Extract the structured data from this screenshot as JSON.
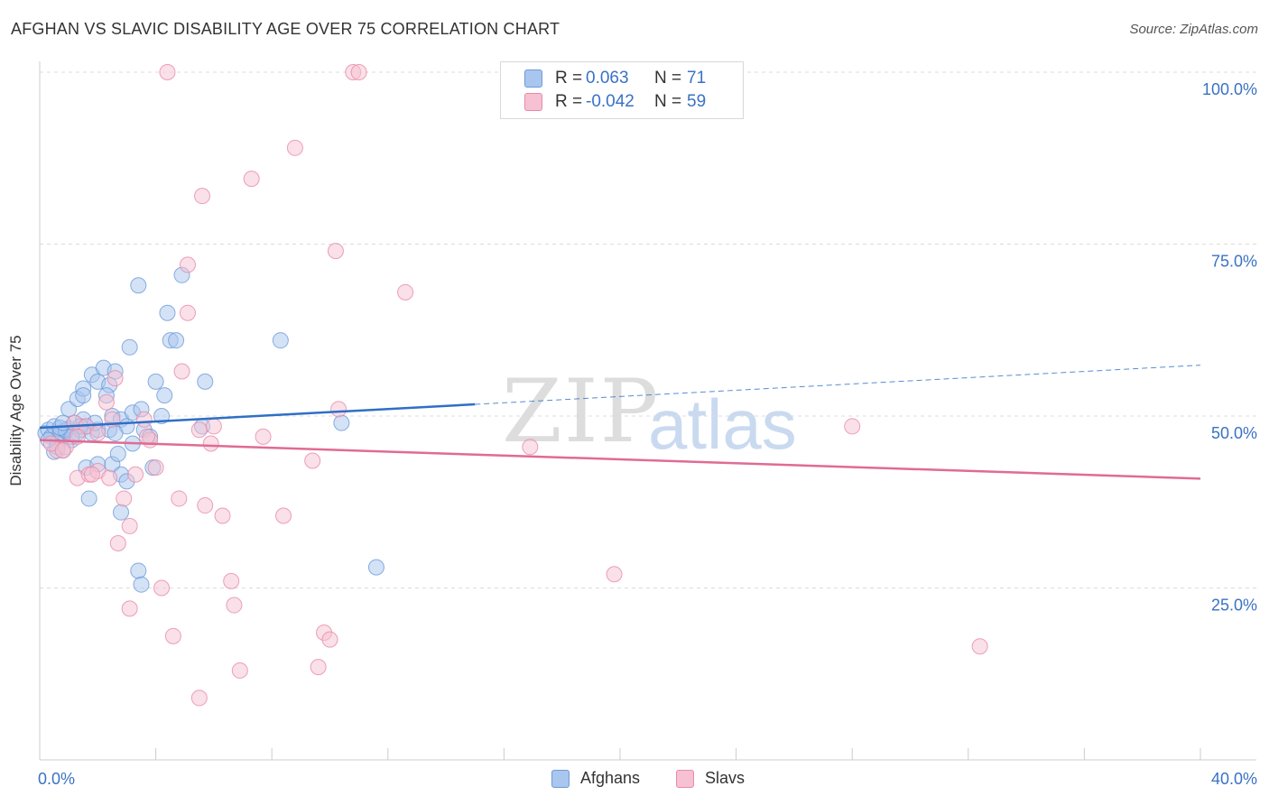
{
  "title": "AFGHAN VS SLAVIC DISABILITY AGE OVER 75 CORRELATION CHART",
  "source": "Source: ZipAtlas.com",
  "watermark": {
    "zip": "ZIP",
    "atlas": "atlas"
  },
  "colors": {
    "afghans_fill": "#a9c6ee",
    "afghans_stroke": "#6c9ad9",
    "afghans_line": "#2f6fc6",
    "slavs_fill": "#f6c1d2",
    "slavs_stroke": "#e98aa8",
    "slavs_line": "#e06b93",
    "tick_text": "#3a72c4",
    "grid": "#dcdcdc"
  },
  "legend": {
    "rows": [
      {
        "label": "R =",
        "r": "0.063",
        "nlabel": "N =",
        "n": "71",
        "series": "afghans"
      },
      {
        "label": "R =",
        "r": "-0.042",
        "nlabel": "N =",
        "n": "59",
        "series": "slavs"
      }
    ]
  },
  "bottom_legend": {
    "afghans": "Afghans",
    "slavs": "Slavs"
  },
  "chart_data": {
    "type": "scatter",
    "title": "AFGHAN VS SLAVIC DISABILITY AGE OVER 75 CORRELATION CHART",
    "xlabel": "",
    "ylabel": "Disability Age Over 75",
    "xlim": [
      0,
      40
    ],
    "ylim": [
      0,
      102
    ],
    "x_tick_labels": [
      "0.0%",
      "40.0%"
    ],
    "y_ticks": [
      25,
      50,
      75,
      100
    ],
    "y_tick_labels": [
      "25.0%",
      "50.0%",
      "75.0%",
      "100.0%"
    ],
    "legend_position": "top-center",
    "series": [
      {
        "name": "Afghans",
        "r": 0.063,
        "n": 71,
        "trend": {
          "x0": 0,
          "y0": 48.3,
          "x1": 15,
          "y1": 51.7,
          "dashed_to_x": 40,
          "dashed_to_y": 57.4
        },
        "points": [
          [
            0.2,
            47.5
          ],
          [
            0.3,
            48.0
          ],
          [
            0.4,
            47.0
          ],
          [
            0.5,
            48.5
          ],
          [
            0.6,
            46.0
          ],
          [
            0.7,
            47.5
          ],
          [
            0.8,
            45.0
          ],
          [
            0.9,
            47.8
          ],
          [
            1.0,
            48.2
          ],
          [
            1.1,
            46.5
          ],
          [
            0.5,
            44.8
          ],
          [
            0.6,
            45.5
          ],
          [
            0.3,
            46.5
          ],
          [
            1.2,
            49.0
          ],
          [
            1.3,
            47.5
          ],
          [
            1.4,
            48.0
          ],
          [
            1.5,
            49.5
          ],
          [
            1.6,
            48.5
          ],
          [
            1.8,
            47.5
          ],
          [
            2.0,
            48.0
          ],
          [
            1.0,
            51.0
          ],
          [
            1.3,
            52.5
          ],
          [
            1.5,
            54.0
          ],
          [
            1.8,
            56.0
          ],
          [
            2.0,
            55.0
          ],
          [
            2.2,
            57.0
          ],
          [
            2.4,
            54.5
          ],
          [
            2.6,
            56.5
          ],
          [
            3.1,
            60.0
          ],
          [
            2.3,
            53.0
          ],
          [
            2.5,
            50.0
          ],
          [
            2.8,
            49.5
          ],
          [
            3.0,
            48.5
          ],
          [
            3.2,
            50.5
          ],
          [
            3.5,
            51.0
          ],
          [
            4.0,
            55.0
          ],
          [
            4.3,
            53.0
          ],
          [
            4.5,
            61.0
          ],
          [
            4.7,
            61.0
          ],
          [
            4.4,
            65.0
          ],
          [
            3.4,
            69.0
          ],
          [
            4.9,
            70.5
          ],
          [
            5.7,
            55.0
          ],
          [
            8.3,
            61.0
          ],
          [
            10.4,
            49.0
          ],
          [
            1.6,
            42.5
          ],
          [
            1.7,
            38.0
          ],
          [
            2.0,
            43.0
          ],
          [
            2.5,
            43.0
          ],
          [
            2.7,
            44.5
          ],
          [
            2.8,
            41.5
          ],
          [
            3.0,
            40.5
          ],
          [
            3.2,
            46.0
          ],
          [
            3.6,
            48.0
          ],
          [
            3.9,
            42.5
          ],
          [
            2.8,
            36.0
          ],
          [
            3.4,
            27.5
          ],
          [
            3.5,
            25.5
          ],
          [
            11.6,
            28.0
          ],
          [
            5.6,
            48.5
          ],
          [
            1.4,
            48.5
          ],
          [
            1.9,
            49.0
          ],
          [
            0.9,
            48.0
          ],
          [
            1.1,
            47.0
          ],
          [
            0.7,
            48.3
          ],
          [
            2.4,
            48.0
          ],
          [
            2.6,
            47.5
          ],
          [
            3.8,
            47.0
          ],
          [
            4.2,
            50.0
          ],
          [
            1.5,
            53.0
          ],
          [
            0.8,
            49.0
          ]
        ]
      },
      {
        "name": "Slavs",
        "r": -0.042,
        "n": 59,
        "trend": {
          "x0": 0,
          "y0": 46.5,
          "x1": 40,
          "y1": 40.9
        },
        "points": [
          [
            4.4,
            100.0
          ],
          [
            10.8,
            100.0
          ],
          [
            11.0,
            100.0
          ],
          [
            8.8,
            89.0
          ],
          [
            7.3,
            84.5
          ],
          [
            5.6,
            82.0
          ],
          [
            10.2,
            74.0
          ],
          [
            5.1,
            72.0
          ],
          [
            12.6,
            68.0
          ],
          [
            5.1,
            65.0
          ],
          [
            4.9,
            56.5
          ],
          [
            2.6,
            55.5
          ],
          [
            2.3,
            52.0
          ],
          [
            10.3,
            51.0
          ],
          [
            3.6,
            49.5
          ],
          [
            1.2,
            49.0
          ],
          [
            5.5,
            48.0
          ],
          [
            6.0,
            48.5
          ],
          [
            7.7,
            47.0
          ],
          [
            3.8,
            46.5
          ],
          [
            1.6,
            48.5
          ],
          [
            2.0,
            47.5
          ],
          [
            0.6,
            45.0
          ],
          [
            0.9,
            45.5
          ],
          [
            0.4,
            46.0
          ],
          [
            1.3,
            47.0
          ],
          [
            5.9,
            46.0
          ],
          [
            16.9,
            45.5
          ],
          [
            28.0,
            48.5
          ],
          [
            9.4,
            43.5
          ],
          [
            1.3,
            41.0
          ],
          [
            1.7,
            41.5
          ],
          [
            2.0,
            42.0
          ],
          [
            2.4,
            41.0
          ],
          [
            3.3,
            41.5
          ],
          [
            4.0,
            42.5
          ],
          [
            2.9,
            38.0
          ],
          [
            4.8,
            38.0
          ],
          [
            5.7,
            37.0
          ],
          [
            6.3,
            35.5
          ],
          [
            8.4,
            35.5
          ],
          [
            3.1,
            34.0
          ],
          [
            2.7,
            31.5
          ],
          [
            6.6,
            26.0
          ],
          [
            19.8,
            27.0
          ],
          [
            4.2,
            25.0
          ],
          [
            3.1,
            22.0
          ],
          [
            6.7,
            22.5
          ],
          [
            9.8,
            18.5
          ],
          [
            10.0,
            17.5
          ],
          [
            4.6,
            18.0
          ],
          [
            32.4,
            16.5
          ],
          [
            6.9,
            13.0
          ],
          [
            9.6,
            13.5
          ],
          [
            5.5,
            9.0
          ],
          [
            1.8,
            41.5
          ],
          [
            0.8,
            45.0
          ],
          [
            2.5,
            49.5
          ],
          [
            3.7,
            47.0
          ]
        ]
      }
    ]
  }
}
